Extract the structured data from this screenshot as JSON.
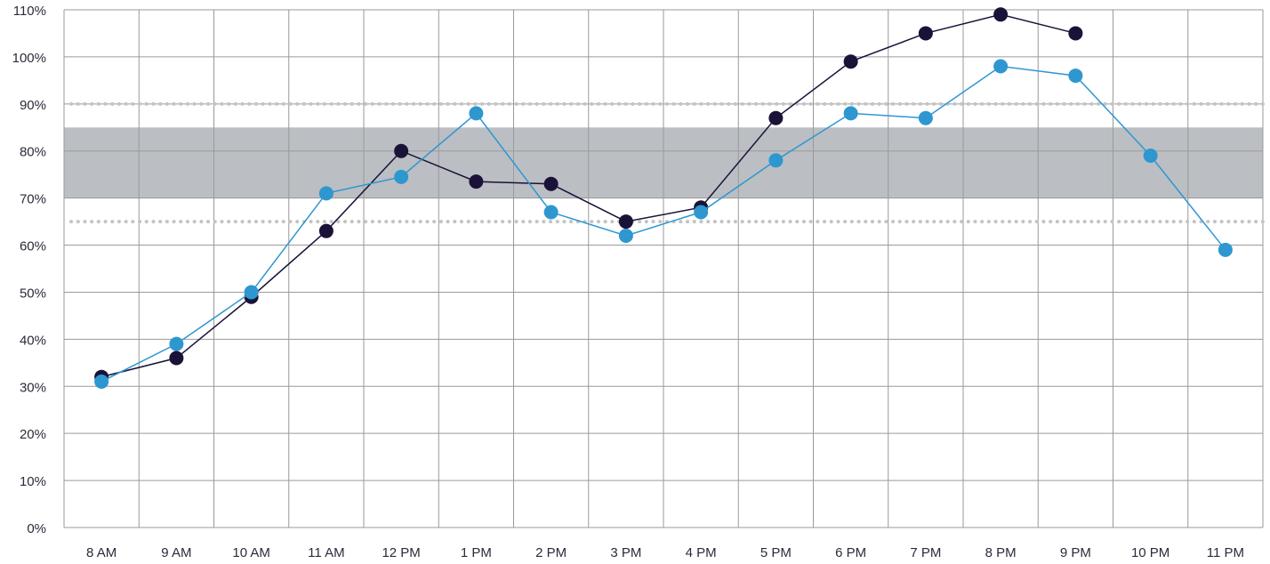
{
  "chart_data": {
    "type": "line",
    "title": "",
    "xlabel": "",
    "ylabel": "",
    "categories": [
      "8 AM",
      "9 AM",
      "10 AM",
      "11 AM",
      "12 PM",
      "1 PM",
      "2 PM",
      "3 PM",
      "4 PM",
      "5 PM",
      "6 PM",
      "7 PM",
      "8 PM",
      "9 PM",
      "10 PM",
      "11 PM"
    ],
    "y_ticks": [
      "0%",
      "10%",
      "20%",
      "30%",
      "40%",
      "50%",
      "60%",
      "70%",
      "80%",
      "90%",
      "100%",
      "110%"
    ],
    "ylim": [
      0,
      110
    ],
    "grid": true,
    "band": {
      "from": 70,
      "to": 85,
      "color": "#bbbec3"
    },
    "reference_lines": [
      {
        "value": 90,
        "style": "dotted",
        "color": "#c4c4c4"
      },
      {
        "value": 65,
        "style": "dotted",
        "color": "#c4c4c4"
      }
    ],
    "series": [
      {
        "color": "#1a1238",
        "values": [
          32,
          36,
          49,
          63,
          80,
          73.5,
          73,
          65,
          68,
          87,
          99,
          105,
          109,
          105,
          null,
          null
        ]
      },
      {
        "color": "#2e97d0",
        "values": [
          31,
          39,
          50,
          71,
          74.5,
          88,
          67,
          62,
          67,
          78,
          88,
          87,
          98,
          96,
          79,
          59
        ]
      }
    ]
  }
}
